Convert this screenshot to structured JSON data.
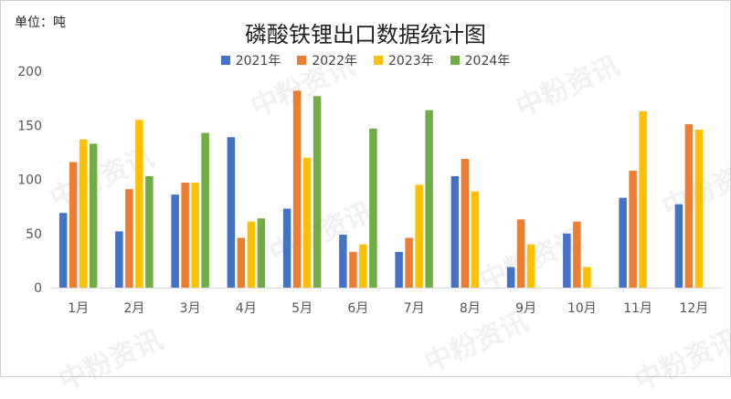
{
  "header": {
    "unit_label": "单位：吨",
    "title": "磷酸铁锂出口数据统计图"
  },
  "watermark_text": "中粉资讯",
  "chart_data": {
    "type": "bar",
    "title": "磷酸铁锂出口数据统计图",
    "ylabel": "单位：吨",
    "ylim": [
      0,
      200
    ],
    "yticks": [
      "0",
      "50",
      "100",
      "150",
      "200"
    ],
    "grid": false,
    "legend_position": "top",
    "categories": [
      "1月",
      "2月",
      "3月",
      "4月",
      "5月",
      "6月",
      "7月",
      "8月",
      "9月",
      "10月",
      "11月",
      "12月"
    ],
    "series": [
      {
        "name": "2021年",
        "color": "#4472C4",
        "values": [
          69,
          52,
          86,
          139,
          73,
          49,
          33,
          103,
          19,
          50,
          83,
          77
        ]
      },
      {
        "name": "2022年",
        "color": "#ED7D31",
        "values": [
          116,
          91,
          97,
          46,
          182,
          33,
          46,
          119,
          63,
          61,
          108,
          151
        ]
      },
      {
        "name": "2023年",
        "color": "#FFC000",
        "values": [
          137,
          155,
          97,
          61,
          120,
          40,
          95,
          89,
          40,
          19,
          163,
          146
        ]
      },
      {
        "name": "2024年",
        "color": "#70AD47",
        "values": [
          133,
          103,
          143,
          64,
          177,
          147,
          164,
          null,
          null,
          null,
          null,
          null
        ]
      }
    ]
  }
}
